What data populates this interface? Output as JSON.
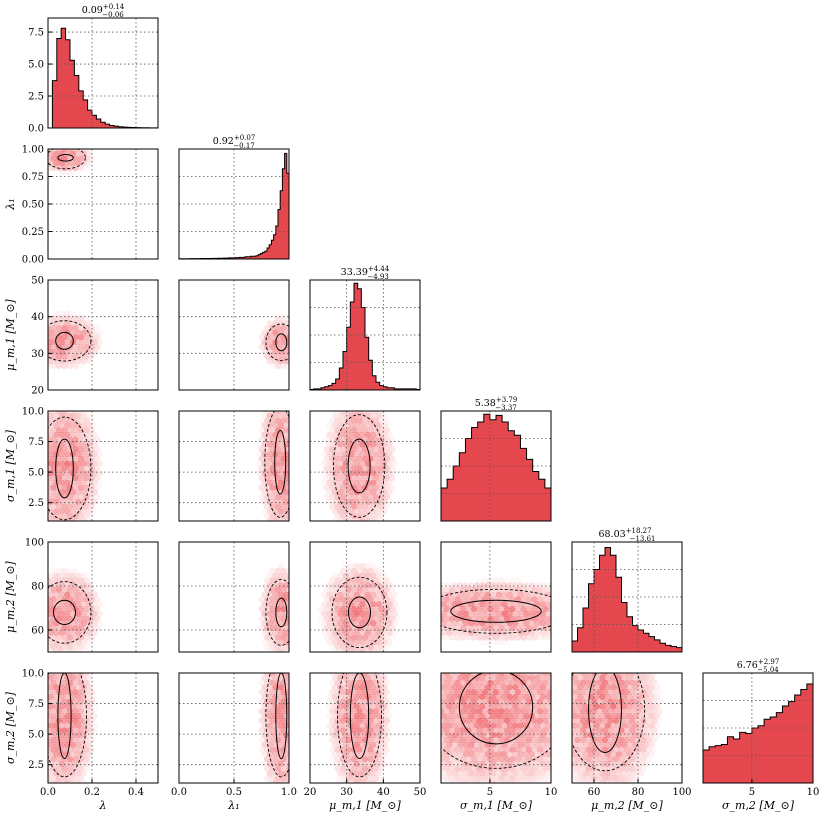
{
  "chart_data": {
    "type": "corner",
    "colors": {
      "fill": "#e4484e",
      "edge": "#000000",
      "hexbin": "#e8222a"
    },
    "grid": true,
    "grid_style": "dotted",
    "contours": [
      "solid",
      "dashed"
    ],
    "params": [
      {
        "id": "lambda",
        "label": "λ",
        "title_main": "0.09",
        "title_up": "+0.14",
        "title_down": "−0.06",
        "range": [
          0,
          0.5
        ],
        "ticks": [
          0,
          0.2,
          0.4
        ],
        "tick_labels": [
          "0.0",
          "0.2",
          "0.4"
        ],
        "grid": [
          0.2,
          0.4
        ],
        "hist_ylim": [
          0,
          8.6
        ],
        "hist_yticks": [
          0,
          2.5,
          5,
          7.5
        ],
        "hist_yticklabels": [
          "0.0",
          "2.5",
          "5.0",
          "7.5"
        ],
        "hist_edges": [
          0.02,
          0.04,
          0.06,
          0.08,
          0.1,
          0.12,
          0.14,
          0.16,
          0.18,
          0.2,
          0.22,
          0.24,
          0.26,
          0.28,
          0.3,
          0.32,
          0.34,
          0.36,
          0.38,
          0.4,
          0.42,
          0.44,
          0.46,
          0.48,
          0.5
        ],
        "hist_values": [
          3.7,
          7.0,
          7.8,
          6.9,
          5.3,
          4.1,
          2.9,
          2.2,
          1.4,
          1.0,
          0.7,
          0.45,
          0.3,
          0.2,
          0.15,
          0.1,
          0.07,
          0.05,
          0.04,
          0.03,
          0.02,
          0.02,
          0.01,
          0.01
        ]
      },
      {
        "id": "lambda1",
        "label": "λ₁",
        "title_main": "0.92",
        "title_up": "+0.07",
        "title_down": "−0.17",
        "range": [
          0,
          1
        ],
        "ticks": [
          0,
          0.5,
          1
        ],
        "tick_labels": [
          "0.0",
          "0.5",
          "1.0"
        ],
        "grid": [
          0.5
        ],
        "axis_yticks": [
          0,
          0.25,
          0.5,
          0.75,
          1.0
        ],
        "axis_yticklabels": [
          "0.00",
          "0.25",
          "0.50",
          "0.75",
          "1.00"
        ],
        "hist_ylim": [
          0,
          1
        ],
        "hist_edges": [
          0.0,
          0.05,
          0.1,
          0.15,
          0.2,
          0.25,
          0.3,
          0.35,
          0.4,
          0.45,
          0.5,
          0.55,
          0.6,
          0.65,
          0.7,
          0.72,
          0.74,
          0.76,
          0.78,
          0.8,
          0.82,
          0.84,
          0.86,
          0.88,
          0.9,
          0.92,
          0.94,
          0.96,
          0.98,
          1.0
        ],
        "hist_values": [
          0.002,
          0.002,
          0.003,
          0.003,
          0.004,
          0.005,
          0.006,
          0.007,
          0.008,
          0.01,
          0.012,
          0.015,
          0.02,
          0.025,
          0.03,
          0.04,
          0.05,
          0.06,
          0.07,
          0.1,
          0.13,
          0.17,
          0.22,
          0.3,
          0.45,
          0.62,
          0.82,
          0.96,
          0.78
        ]
      },
      {
        "id": "mu_m1",
        "label": "μ_m,1 [M_⊙]",
        "title_main": "33.39",
        "title_up": "+4.44",
        "title_down": "−4.93",
        "range": [
          20,
          50
        ],
        "ticks": [
          20,
          30,
          40,
          50
        ],
        "tick_labels": [
          "20",
          "30",
          "40",
          "50"
        ],
        "grid": [
          30,
          40
        ],
        "axis_yticks": [
          20,
          30,
          40,
          50
        ],
        "axis_yticklabels": [
          "20",
          "30",
          "40",
          "50"
        ],
        "hist_ylim": [
          0,
          1
        ],
        "hist_edges": [
          20,
          21,
          22,
          23,
          24,
          25,
          26,
          27,
          28,
          29,
          30,
          31,
          32,
          33,
          34,
          35,
          36,
          37,
          38,
          39,
          40,
          41,
          42,
          43,
          44,
          45,
          46,
          47,
          48,
          49,
          50
        ],
        "hist_values": [
          0.005,
          0.01,
          0.01,
          0.02,
          0.03,
          0.04,
          0.06,
          0.1,
          0.2,
          0.35,
          0.57,
          0.8,
          0.97,
          0.92,
          0.75,
          0.48,
          0.27,
          0.13,
          0.07,
          0.04,
          0.03,
          0.02,
          0.02,
          0.01,
          0.01,
          0.01,
          0.01,
          0.01,
          0.01,
          0.005
        ]
      },
      {
        "id": "sigma_m1",
        "label": "σ_m,1 [M_⊙]",
        "title_main": "5.38",
        "title_up": "+3.79",
        "title_down": "−3.37",
        "range": [
          1,
          10
        ],
        "ticks": [
          5,
          10
        ],
        "tick_labels": [
          "5",
          "10"
        ],
        "grid": [
          5
        ],
        "axis_yticks": [
          2.5,
          5,
          7.5,
          10
        ],
        "axis_yticklabels": [
          "2.5",
          "5.0",
          "7.5",
          "10.0"
        ],
        "hist_ylim": [
          0,
          1
        ],
        "hist_edges": [
          1.0,
          1.5,
          2.0,
          2.5,
          3.0,
          3.5,
          4.0,
          4.5,
          5.0,
          5.5,
          6.0,
          6.5,
          7.0,
          7.5,
          8.0,
          8.5,
          9.0,
          9.5,
          10.0
        ],
        "hist_values": [
          0.3,
          0.38,
          0.5,
          0.62,
          0.75,
          0.85,
          0.9,
          0.97,
          0.92,
          0.96,
          0.9,
          0.82,
          0.78,
          0.66,
          0.56,
          0.45,
          0.38,
          0.3
        ]
      },
      {
        "id": "mu_m2",
        "label": "μ_m,2 [M_⊙]",
        "title_main": "68.03",
        "title_up": "+18.27",
        "title_down": "−13.61",
        "range": [
          50,
          100
        ],
        "ticks": [
          60,
          80,
          100
        ],
        "tick_labels": [
          "60",
          "80",
          "100"
        ],
        "grid": [
          60,
          80
        ],
        "axis_yticks": [
          60,
          80,
          100
        ],
        "axis_yticklabels": [
          "60",
          "80",
          "100"
        ],
        "hist_ylim": [
          0,
          1
        ],
        "hist_edges": [
          50,
          52.5,
          55,
          57.5,
          60,
          62.5,
          65,
          67.5,
          70,
          72.5,
          75,
          77.5,
          80,
          82.5,
          85,
          87.5,
          90,
          92.5,
          95,
          97.5,
          100
        ],
        "hist_values": [
          0.1,
          0.22,
          0.4,
          0.62,
          0.75,
          0.88,
          0.95,
          0.88,
          0.68,
          0.45,
          0.32,
          0.24,
          0.2,
          0.17,
          0.14,
          0.11,
          0.08,
          0.06,
          0.05,
          0.04
        ]
      },
      {
        "id": "sigma_m2",
        "label": "σ_m,2 [M_⊙]",
        "title_main": "6.76",
        "title_up": "+2.97",
        "title_down": "−5.04",
        "range": [
          1,
          10
        ],
        "ticks": [
          5,
          10
        ],
        "tick_labels": [
          "5",
          "10"
        ],
        "grid": [
          5
        ],
        "axis_yticks": [
          2.5,
          5,
          7.5,
          10
        ],
        "axis_yticklabels": [
          "2.5",
          "5.0",
          "7.5",
          "10.0"
        ],
        "hist_ylim": [
          0,
          1
        ],
        "hist_edges": [
          1.0,
          1.5,
          2.0,
          2.5,
          3.0,
          3.5,
          4.0,
          4.5,
          5.0,
          5.5,
          6.0,
          6.5,
          7.0,
          7.5,
          8.0,
          8.5,
          9.0,
          9.5,
          10.0
        ],
        "hist_values": [
          0.3,
          0.33,
          0.34,
          0.35,
          0.42,
          0.4,
          0.46,
          0.45,
          0.5,
          0.52,
          0.58,
          0.6,
          0.64,
          0.7,
          0.74,
          0.8,
          0.85,
          0.9
        ]
      }
    ],
    "pairs": {
      "1_0": {
        "center": [
          0.08,
          0.92
        ],
        "in": [
          0.035,
          0.03
        ],
        "out": [
          0.09,
          0.1
        ]
      },
      "2_0": {
        "center": [
          0.075,
          33.4
        ],
        "in": [
          0.04,
          2.3
        ],
        "out": [
          0.12,
          5.5
        ]
      },
      "2_1": {
        "center": [
          0.93,
          33.0
        ],
        "in": [
          0.05,
          2.3
        ],
        "out": [
          0.14,
          5.0
        ]
      },
      "3_0": {
        "center": [
          0.075,
          5.3
        ],
        "in": [
          0.04,
          2.4
        ],
        "out": [
          0.12,
          4.2
        ]
      },
      "3_1": {
        "center": [
          0.92,
          5.8
        ],
        "in": [
          0.05,
          2.6
        ],
        "out": [
          0.14,
          4.5
        ]
      },
      "3_2": {
        "center": [
          33.4,
          5.5
        ],
        "in": [
          3.0,
          2.2
        ],
        "out": [
          7.0,
          4.2
        ]
      },
      "4_0": {
        "center": [
          0.075,
          68
        ],
        "in": [
          0.05,
          5.5
        ],
        "out": [
          0.12,
          14
        ]
      },
      "4_1": {
        "center": [
          0.93,
          68
        ],
        "in": [
          0.05,
          6.5
        ],
        "out": [
          0.14,
          15
        ]
      },
      "4_2": {
        "center": [
          33.5,
          68
        ],
        "in": [
          3.0,
          7.0
        ],
        "out": [
          7.5,
          16
        ]
      },
      "4_3": {
        "center": [
          5.5,
          68.5
        ],
        "in": [
          3.7,
          5.0
        ],
        "out": [
          6.0,
          10
        ]
      },
      "5_0": {
        "center": [
          0.075,
          6.5
        ],
        "in": [
          0.03,
          3.5
        ],
        "out": [
          0.1,
          5.0
        ]
      },
      "5_1": {
        "center": [
          0.93,
          6.5
        ],
        "in": [
          0.05,
          3.5
        ],
        "out": [
          0.14,
          5.0
        ]
      },
      "5_2": {
        "center": [
          33.5,
          6.5
        ],
        "in": [
          2.5,
          3.5
        ],
        "out": [
          6.0,
          5.0
        ]
      },
      "5_3": {
        "center": [
          5.5,
          7.2
        ],
        "in": [
          3.0,
          3.0
        ],
        "out": [
          6.0,
          5.0
        ]
      },
      "5_4": {
        "center": [
          65,
          7.0
        ],
        "in": [
          7.5,
          3.5
        ],
        "out": [
          18,
          5.0
        ]
      }
    }
  }
}
